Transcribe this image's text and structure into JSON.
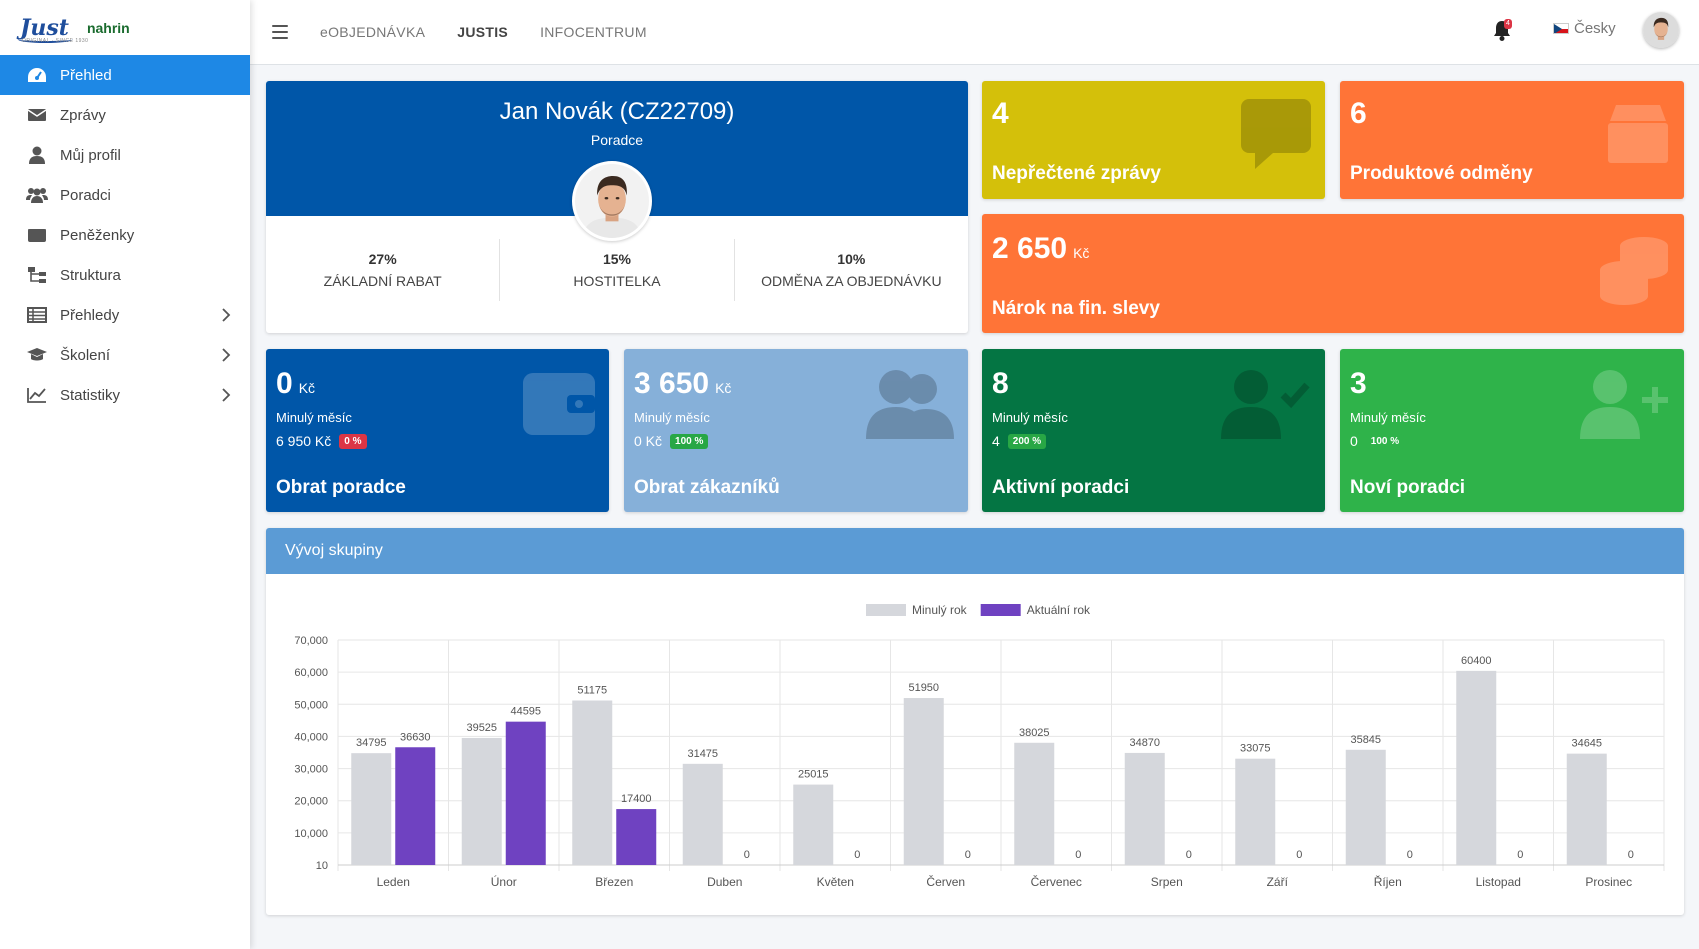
{
  "brand": {
    "logo": "Just",
    "logo_sub": "ORIGINAL · SINCE 1930",
    "partner": "nahrin"
  },
  "sidebar": {
    "items": [
      {
        "label": "Přehled",
        "icon": "dashboard-icon",
        "active": true,
        "has_children": false
      },
      {
        "label": "Zprávy",
        "icon": "envelope-icon",
        "active": false,
        "has_children": false
      },
      {
        "label": "Můj profil",
        "icon": "user-icon",
        "active": false,
        "has_children": false
      },
      {
        "label": "Poradci",
        "icon": "users-icon",
        "active": false,
        "has_children": false
      },
      {
        "label": "Peněženky",
        "icon": "wallet-icon",
        "active": false,
        "has_children": false
      },
      {
        "label": "Struktura",
        "icon": "sitemap-icon",
        "active": false,
        "has_children": false
      },
      {
        "label": "Přehledy",
        "icon": "table-icon",
        "active": false,
        "has_children": true
      },
      {
        "label": "Školení",
        "icon": "graduation-cap-icon",
        "active": false,
        "has_children": true
      },
      {
        "label": "Statistiky",
        "icon": "line-chart-icon",
        "active": false,
        "has_children": true
      }
    ]
  },
  "header": {
    "links": [
      "eOBJEDNÁVKA",
      "JUSTIS",
      "INFOCENTRUM"
    ],
    "notifications_count": "4",
    "language": "Česky"
  },
  "profile": {
    "name": "Jan Novák (CZ22709)",
    "role": "Poradce",
    "stats": [
      {
        "value": "27%",
        "label": "Základní rabat"
      },
      {
        "value": "15%",
        "label": "Hostitelka"
      },
      {
        "value": "10%",
        "label": "Odměna za objednávku"
      }
    ]
  },
  "boxes": {
    "unread": {
      "value": "4",
      "title": "Nepřečtené zprávy",
      "color": "#d4c00a"
    },
    "rewards": {
      "value": "6",
      "title": "Produktové odměny",
      "color": "#ff7437"
    },
    "discount": {
      "value": "2 650",
      "unit": "Kč",
      "title": "Nárok na fin. slevy",
      "color": "#ff7437"
    },
    "turnover": {
      "value": "0",
      "unit": "Kč",
      "last_label": "Minulý měsíc",
      "last_value": "6 950 Kč",
      "pct": "0 %",
      "title": "Obrat poradce",
      "color": "#0056a8"
    },
    "customers": {
      "value": "3 650",
      "unit": "Kč",
      "last_label": "Minulý měsíc",
      "last_value": "0 Kč",
      "pct": "100 %",
      "title": "Obrat zákazníků",
      "color": "#86b0d9"
    },
    "active": {
      "value": "8",
      "last_label": "Minulý měsíc",
      "last_value": "4",
      "pct": "200 %",
      "title": "Aktivní poradci",
      "color": "#047543"
    },
    "new": {
      "value": "3",
      "last_label": "Minulý měsíc",
      "last_value": "0",
      "pct": "100 %",
      "title": "Noví poradci",
      "color": "#2fb34a"
    }
  },
  "chart_title": "Vývoj skupiny",
  "chart_data": {
    "type": "bar",
    "categories": [
      "Leden",
      "Únor",
      "Březen",
      "Duben",
      "Květen",
      "Červen",
      "Červenec",
      "Srpen",
      "Září",
      "Říjen",
      "Listopad",
      "Prosinec"
    ],
    "series": [
      {
        "name": "Minulý rok",
        "color": "#d5d7dc",
        "values": [
          34795,
          39525,
          51175,
          31475,
          25015,
          51950,
          38025,
          34870,
          33075,
          35845,
          60400,
          34645
        ]
      },
      {
        "name": "Aktuální rok",
        "color": "#6f42c1",
        "values": [
          36630,
          44595,
          17400,
          0,
          0,
          0,
          0,
          0,
          0,
          0,
          0,
          0
        ]
      }
    ],
    "yticks": [
      "70,000",
      "60,000",
      "50,000",
      "40,000",
      "30,000",
      "20,000",
      "10,000",
      "10"
    ],
    "ylim": [
      0,
      70000
    ],
    "legend": "top-center",
    "grid": true
  }
}
